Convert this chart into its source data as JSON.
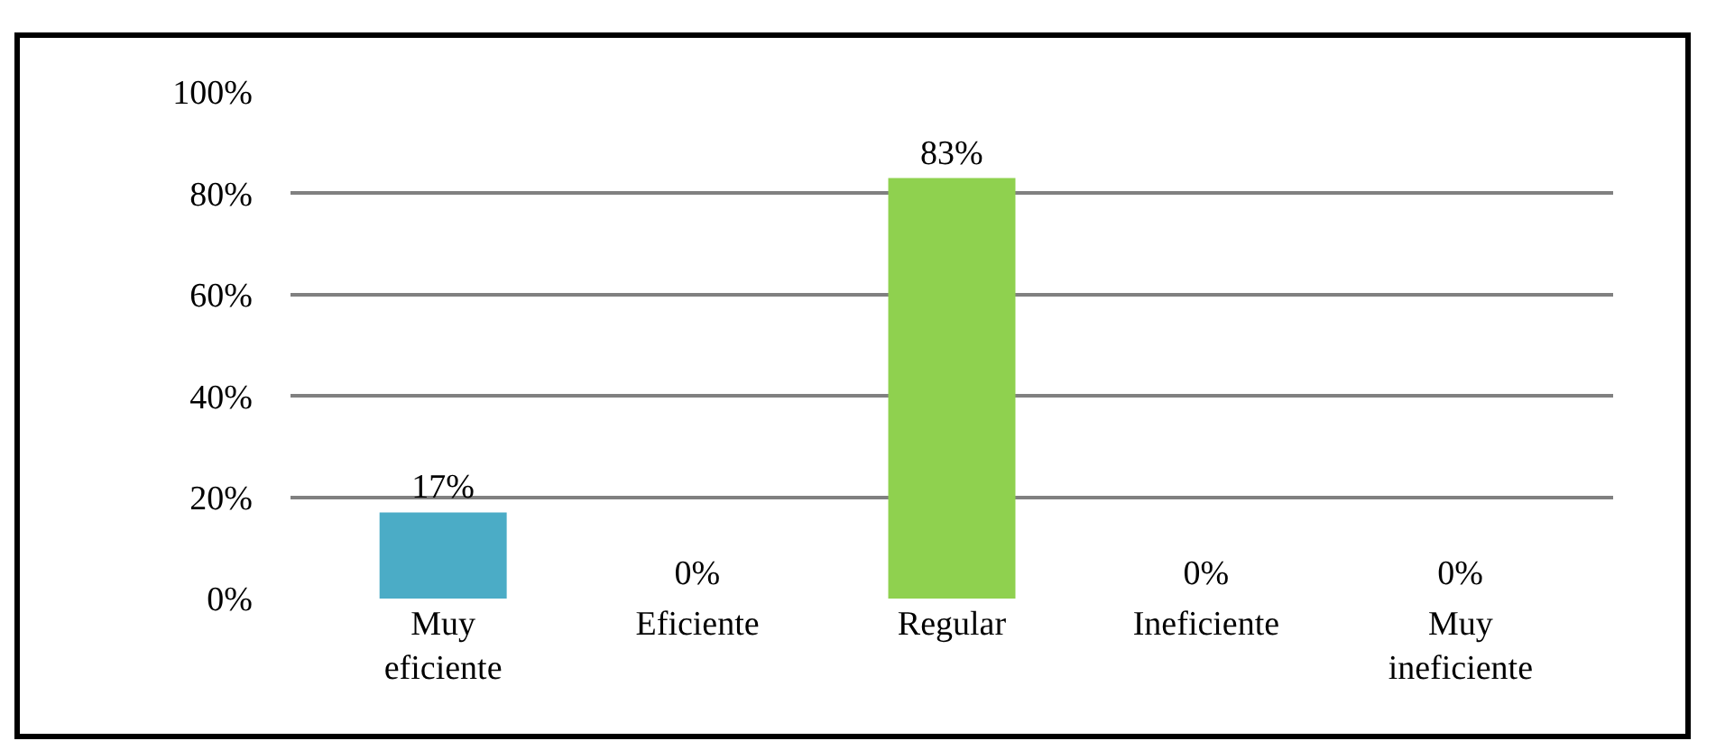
{
  "chart_data": {
    "type": "bar",
    "categories": [
      "Muy eficiente",
      "Eficiente",
      "Regular",
      "Ineficiente",
      "Muy ineficiente"
    ],
    "values": [
      17,
      0,
      83,
      0,
      0
    ],
    "colors": [
      "#4bacc6",
      "#3b1a5a",
      "#8fd14f",
      "#a0522d",
      "#a3a31a"
    ],
    "ylim": [
      0,
      100
    ],
    "yticks": [
      {
        "value": 0,
        "label": "0%"
      },
      {
        "value": 20,
        "label": "20%"
      },
      {
        "value": 40,
        "label": "40%"
      },
      {
        "value": 60,
        "label": "60%"
      },
      {
        "value": 80,
        "label": "80%"
      },
      {
        "value": 100,
        "label": "100%"
      }
    ],
    "value_labels": [
      "17%",
      "0%",
      "83%",
      "0%",
      "0%"
    ],
    "grid": "y"
  }
}
